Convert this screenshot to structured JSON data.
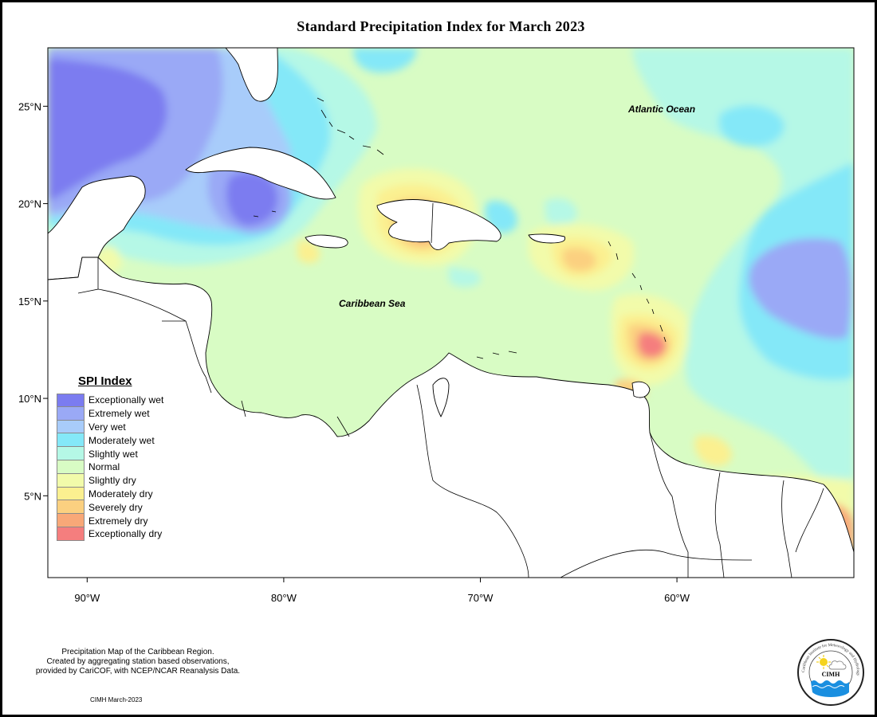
{
  "title": "Standard Precipitation Index for March 2023",
  "map": {
    "region": "Caribbean",
    "lon_range": [
      -92,
      -51
    ],
    "lat_range": [
      0.8,
      28
    ],
    "lon_ticks": [
      {
        "value": -90,
        "label": "90°W"
      },
      {
        "value": -80,
        "label": "80°W"
      },
      {
        "value": -70,
        "label": "70°W"
      },
      {
        "value": -60,
        "label": "60°W"
      }
    ],
    "lat_ticks": [
      {
        "value": 25,
        "label": "25°N"
      },
      {
        "value": 20,
        "label": "20°N"
      },
      {
        "value": 15,
        "label": "15°N"
      },
      {
        "value": 10,
        "label": "10°N"
      },
      {
        "value": 5,
        "label": "5°N"
      }
    ],
    "labels": {
      "atlantic": "Atlantic Ocean",
      "caribbean": "Caribbean Sea"
    }
  },
  "legend": {
    "title": "SPI Index",
    "items": [
      {
        "label": "Exceptionally wet",
        "color": "#7b7cf0"
      },
      {
        "label": "Extremely wet",
        "color": "#9aa9f6"
      },
      {
        "label": "Very wet",
        "color": "#a8ccfa"
      },
      {
        "label": "Moderately wet",
        "color": "#84e8f8"
      },
      {
        "label": "Slightly wet",
        "color": "#b5f8e6"
      },
      {
        "label": "Normal",
        "color": "#d8fcc4"
      },
      {
        "label": "Slightly dry",
        "color": "#f2fbaa"
      },
      {
        "label": "Moderately dry",
        "color": "#fbf090"
      },
      {
        "label": "Severely dry",
        "color": "#fbd080"
      },
      {
        "label": "Extremely dry",
        "color": "#f8a878"
      },
      {
        "label": "Exceptionally dry",
        "color": "#f57e7e"
      }
    ]
  },
  "footnote": {
    "line1": "Precipitation Map of the Caribbean Region.",
    "line2": "Created by aggregating station based observations,",
    "line3": "provided by CariCOF, with NCEP/NCAR Reanalysis Data."
  },
  "credit": "CIMH March-2023",
  "logo": {
    "name": "CIMH",
    "ring_text": "Caribbean Institute for Meteorology and Hydrology"
  }
}
